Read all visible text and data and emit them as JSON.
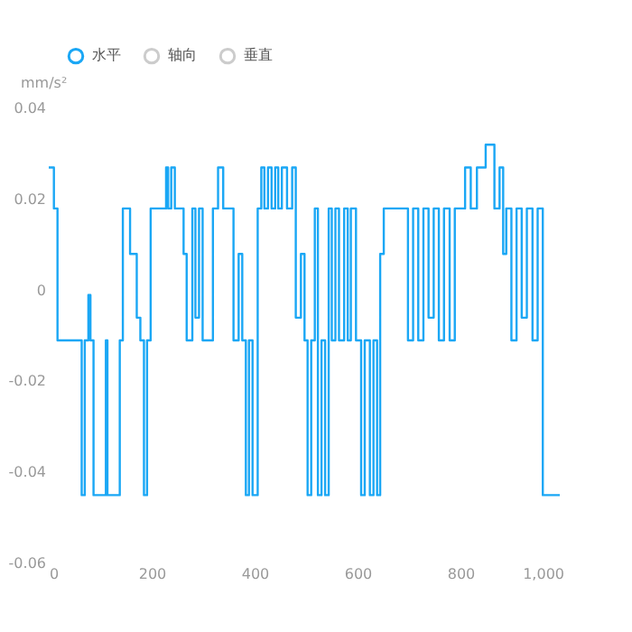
{
  "chart_data": {
    "type": "step",
    "ylabel": "mm/s²",
    "x": [
      0,
      10,
      17,
      64,
      70,
      77,
      81,
      87,
      111,
      114,
      138,
      144,
      158,
      171,
      178,
      185,
      191,
      198,
      228,
      232,
      238,
      245,
      262,
      268,
      279,
      285,
      292,
      299,
      319,
      329,
      339,
      359,
      369,
      376,
      383,
      389,
      396,
      406,
      413,
      419,
      426,
      433,
      440,
      446,
      453,
      463,
      473,
      480,
      490,
      497,
      503,
      510,
      517,
      523,
      530,
      537,
      544,
      550,
      557,
      564,
      574,
      581,
      587,
      597,
      607,
      614,
      624,
      631,
      638,
      644,
      651,
      698,
      708,
      718,
      728,
      738,
      748,
      758,
      768,
      779,
      789,
      809,
      820,
      832,
      849,
      866,
      876,
      883,
      889,
      899,
      909,
      919,
      929,
      940,
      950,
      960,
      993
    ],
    "series": [
      {
        "name": "水平",
        "color": "#1aa7f5",
        "values": [
          0.027,
          0.018,
          -0.011,
          -0.045,
          -0.011,
          -0.001,
          -0.011,
          -0.045,
          -0.011,
          -0.045,
          -0.011,
          0.018,
          0.008,
          -0.006,
          -0.011,
          -0.045,
          -0.011,
          0.018,
          0.027,
          0.018,
          0.027,
          0.018,
          0.008,
          -0.011,
          0.018,
          -0.006,
          0.018,
          -0.011,
          0.018,
          0.027,
          0.018,
          -0.011,
          0.008,
          -0.011,
          -0.045,
          -0.011,
          -0.045,
          0.018,
          0.027,
          0.018,
          0.027,
          0.018,
          0.027,
          0.018,
          0.027,
          0.018,
          0.027,
          -0.006,
          0.008,
          -0.011,
          -0.045,
          -0.011,
          0.018,
          -0.045,
          -0.011,
          -0.045,
          0.018,
          -0.011,
          0.018,
          -0.011,
          0.018,
          -0.011,
          0.018,
          -0.011,
          -0.045,
          -0.011,
          -0.045,
          -0.011,
          -0.045,
          0.008,
          0.018,
          -0.011,
          0.018,
          -0.011,
          0.018,
          -0.006,
          0.018,
          -0.011,
          0.018,
          -0.011,
          0.018,
          0.027,
          0.018,
          0.027,
          0.032,
          0.018,
          0.027,
          0.008,
          0.018,
          -0.011,
          0.018,
          -0.006,
          0.018,
          -0.011,
          0.018,
          -0.045,
          -0.045
        ]
      },
      {
        "name": "轴向",
        "color": "#cccccc",
        "values": [
          null,
          null,
          null,
          null,
          null,
          null,
          null,
          null,
          null,
          null,
          null,
          null,
          null,
          null,
          null,
          null,
          null,
          null,
          null,
          null,
          null,
          null,
          null,
          null,
          null,
          null,
          null,
          null,
          null,
          null,
          null,
          null,
          null,
          null,
          null,
          null,
          null,
          null,
          null,
          null,
          null,
          null,
          null,
          null,
          null,
          null,
          null,
          null,
          null,
          null,
          null,
          null,
          null,
          null,
          null,
          null,
          null,
          null,
          null,
          null,
          null,
          null,
          null,
          null,
          null,
          null,
          null,
          null,
          null,
          null,
          null,
          null,
          null,
          null,
          null,
          null,
          null,
          null,
          null,
          null,
          null,
          null,
          null,
          null,
          null,
          null,
          null,
          null,
          null,
          null,
          null,
          null,
          null,
          null,
          null,
          null,
          null
        ]
      },
      {
        "name": "垂直",
        "color": "#cccccc",
        "values": [
          null,
          null,
          null,
          null,
          null,
          null,
          null,
          null,
          null,
          null,
          null,
          null,
          null,
          null,
          null,
          null,
          null,
          null,
          null,
          null,
          null,
          null,
          null,
          null,
          null,
          null,
          null,
          null,
          null,
          null,
          null,
          null,
          null,
          null,
          null,
          null,
          null,
          null,
          null,
          null,
          null,
          null,
          null,
          null,
          null,
          null,
          null,
          null,
          null,
          null,
          null,
          null,
          null,
          null,
          null,
          null,
          null,
          null,
          null,
          null,
          null,
          null,
          null,
          null,
          null,
          null,
          null,
          null,
          null,
          null,
          null,
          null,
          null,
          null,
          null,
          null,
          null,
          null,
          null,
          null,
          null,
          null,
          null,
          null,
          null,
          null,
          null,
          null,
          null,
          null,
          null,
          null,
          null,
          null,
          null,
          null,
          null
        ]
      }
    ],
    "xlim": [
      0,
      1000
    ],
    "xticks": [
      0,
      200,
      400,
      600,
      800,
      {
        "value": 1000,
        "label": "1,000"
      }
    ],
    "ylim": [
      -0.06,
      0.04
    ],
    "yticks": [
      -0.06,
      -0.04,
      -0.02,
      0,
      0.02,
      0.04
    ],
    "legend": "top left",
    "grid": false
  }
}
